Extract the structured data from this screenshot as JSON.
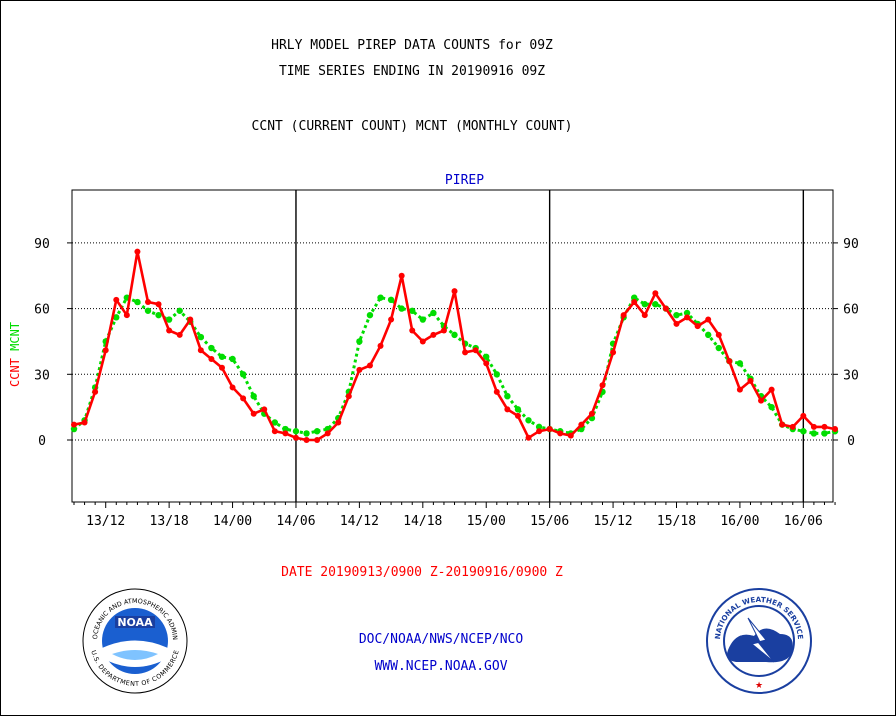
{
  "header": {
    "line1": "HRLY MODEL PIREP DATA COUNTS for 09Z",
    "line2": "TIME SERIES ENDING IN 20190916 09Z",
    "line3": "CCNT (CURRENT COUNT) MCNT (MONTHLY COUNT)"
  },
  "footer": {
    "date_range": "DATE 20190913/0900 Z-20190916/0900 Z",
    "org": "DOC/NOAA/NWS/NCEP/NCO",
    "url": "WWW.NCEP.NOAA.GOV"
  },
  "logos": {
    "noaa_text": "NOAA",
    "noaa_ring_top": "NATIONAL OCEANIC AND ATMOSPHERIC ADMINISTRATION",
    "noaa_ring_bottom": "U.S. DEPARTMENT OF COMMERCE",
    "nws_ring_top": "NATIONAL WEATHER SERVICE"
  },
  "colors": {
    "ccnt": "#ff0000",
    "mcnt": "#00dd00",
    "axis": "#000000",
    "pirep": "#0000cc",
    "footer_blue": "#0000cc"
  },
  "chart_data": {
    "type": "line",
    "title": "PIREP",
    "ylabel_left": [
      "CCNT",
      "MCNT"
    ],
    "ylim": [
      -18,
      115
    ],
    "yticks": [
      0,
      30,
      60,
      90
    ],
    "grid": "horizontal dotted at y ticks",
    "x_tick_labels": [
      "13/12",
      "13/18",
      "14/00",
      "14/06",
      "14/12",
      "14/18",
      "15/00",
      "15/06",
      "15/12",
      "15/18",
      "16/00",
      "16/06"
    ],
    "x_tick_hours": [
      3,
      9,
      15,
      21,
      27,
      33,
      39,
      45,
      51,
      57,
      63,
      69
    ],
    "x_unit": "hours since 20190913/0900 Z",
    "day_boundaries_hours": [
      21,
      45,
      69
    ],
    "series": [
      {
        "name": "CCNT",
        "color": "#ff0000",
        "values": [
          7,
          8,
          22,
          41,
          64,
          57,
          86,
          63,
          62,
          50,
          48,
          55,
          41,
          37,
          33,
          24,
          19,
          12,
          14,
          4,
          3,
          1,
          0,
          0,
          3,
          8,
          20,
          32,
          34,
          43,
          55,
          75,
          50,
          45,
          48,
          50,
          68,
          40,
          41,
          35,
          22,
          14,
          11,
          1,
          4,
          5,
          3,
          2,
          7,
          12,
          25,
          40,
          57,
          63,
          57,
          67,
          60,
          53,
          56,
          52,
          55,
          48,
          36,
          23,
          27,
          18,
          23,
          7,
          6,
          11,
          6,
          6,
          5
        ]
      },
      {
        "name": "MCNT",
        "color": "#00dd00",
        "values": [
          5,
          9,
          24,
          45,
          56,
          65,
          63,
          59,
          57,
          55,
          59,
          54,
          47,
          42,
          38,
          37,
          30,
          20,
          12,
          8,
          5,
          4,
          3,
          4,
          5,
          10,
          22,
          45,
          57,
          65,
          64,
          60,
          59,
          55,
          58,
          52,
          48,
          44,
          42,
          38,
          30,
          20,
          14,
          9,
          6,
          5,
          4,
          3,
          5,
          10,
          22,
          44,
          56,
          65,
          62,
          62,
          60,
          57,
          58,
          53,
          48,
          42,
          36,
          35,
          28,
          20,
          15,
          7,
          5,
          4,
          3,
          3,
          4
        ]
      }
    ],
    "right_axis_ticks": [
      0,
      30,
      60,
      90
    ]
  }
}
